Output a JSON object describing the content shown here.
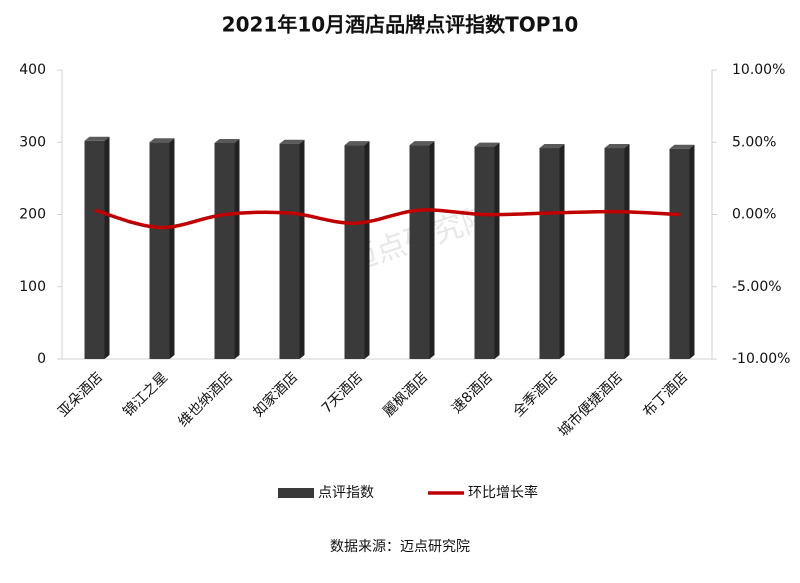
{
  "chart_data": {
    "type": "bar_line",
    "title": "2021年10月酒店品牌点评指数TOP10",
    "categories": [
      "亚朵酒店",
      "锦江之星",
      "维也纳酒店",
      "如家酒店",
      "7天酒店",
      "麗枫酒店",
      "速8酒店",
      "全季酒店",
      "城市便捷酒店",
      "布丁酒店"
    ],
    "series": [
      {
        "name": "点评指数",
        "type": "bar",
        "color": "#3a3a3a",
        "values": [
          302,
          300,
          299,
          298,
          296,
          296,
          294,
          292,
          292,
          291
        ]
      },
      {
        "name": "环比增长率",
        "type": "line",
        "axis": "y2",
        "color": "#c00000",
        "values": [
          0.3,
          -0.9,
          0,
          0.1,
          -0.6,
          0.3,
          0,
          0.1,
          0.2,
          0
        ]
      }
    ],
    "ylim": [
      0,
      400
    ],
    "yticks": [
      0,
      100,
      200,
      300,
      400
    ],
    "y2lim": [
      -10,
      10
    ],
    "y2ticks": [
      {
        "value": -10,
        "label": "-10.00%"
      },
      {
        "value": -5,
        "label": "-5.00%"
      },
      {
        "value": 0,
        "label": "0.00%"
      },
      {
        "value": 5,
        "label": "5.00%"
      },
      {
        "value": 10,
        "label": "10.00%"
      }
    ],
    "grid": false,
    "legend": "bottom",
    "watermark": "迈点研究院",
    "source": "数据来源：迈点研究院"
  }
}
